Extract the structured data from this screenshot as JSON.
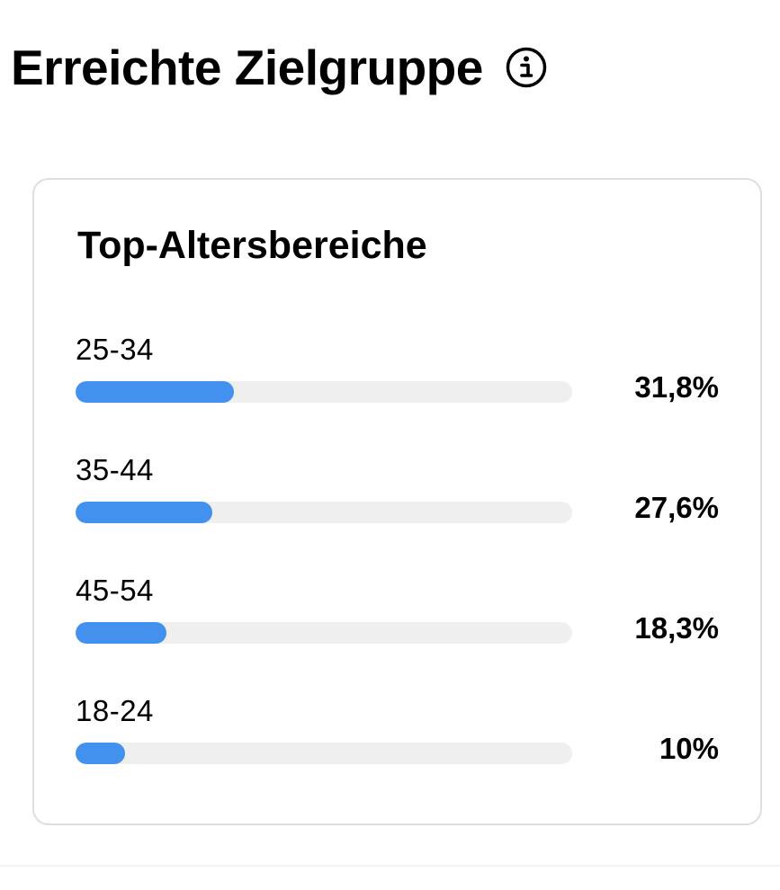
{
  "header": {
    "title": "Erreichte Zielgruppe",
    "info_icon": "info-circle-icon"
  },
  "card": {
    "title": "Top-Altersbereiche",
    "bar_color": "#4391ee",
    "track_color": "#efefef",
    "rows": [
      {
        "label": "25-34",
        "value": "31,8%",
        "percent": 31.8
      },
      {
        "label": "35-44",
        "value": "27,6%",
        "percent": 27.6
      },
      {
        "label": "45-54",
        "value": "18,3%",
        "percent": 18.3
      },
      {
        "label": "18-24",
        "value": "10%",
        "percent": 10
      }
    ]
  }
}
